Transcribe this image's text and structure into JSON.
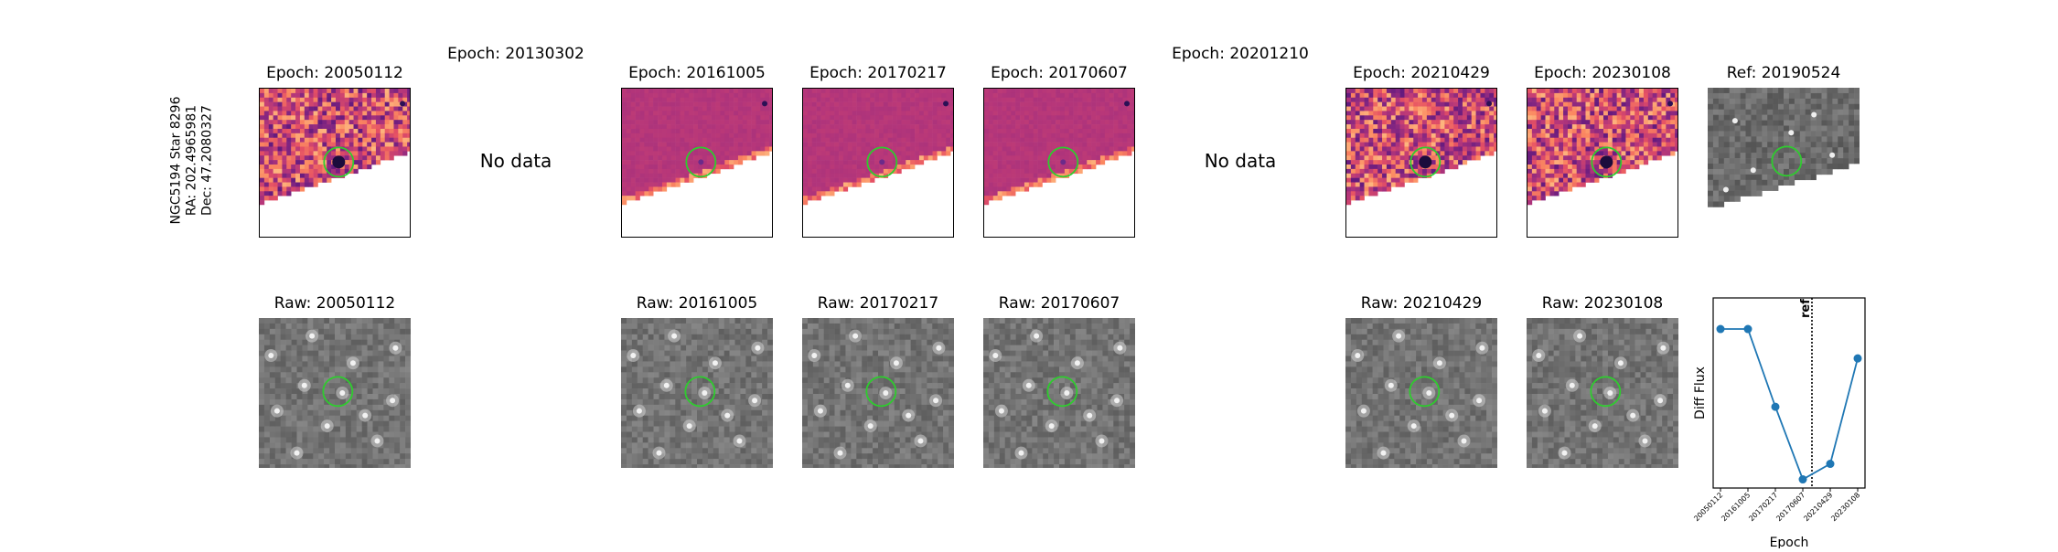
{
  "star_info": {
    "name": "NGC5194 Star 8296",
    "ra": "RA: 202.4965981",
    "dec": "Dec: 47.2080327"
  },
  "epochs": [
    {
      "diff_title": "Epoch: 20050112",
      "raw_title": "Raw: 20050112",
      "has_data": true,
      "style": "bright"
    },
    {
      "diff_title": "Epoch: 20130302",
      "raw_title": "",
      "has_data": false,
      "nodata_label": "No data"
    },
    {
      "diff_title": "Epoch: 20161005",
      "raw_title": "Raw: 20161005",
      "has_data": true,
      "style": "smooth"
    },
    {
      "diff_title": "Epoch: 20170217",
      "raw_title": "Raw: 20170217",
      "has_data": true,
      "style": "smooth"
    },
    {
      "diff_title": "Epoch: 20170607",
      "raw_title": "Raw: 20170607",
      "has_data": true,
      "style": "smooth"
    },
    {
      "diff_title": "Epoch: 20201210",
      "raw_title": "",
      "has_data": false,
      "nodata_label": "No data"
    },
    {
      "diff_title": "Epoch: 20210429",
      "raw_title": "Raw: 20210429",
      "has_data": true,
      "style": "bright"
    },
    {
      "diff_title": "Epoch: 20230108",
      "raw_title": "Raw: 20230108",
      "has_data": true,
      "style": "bright"
    }
  ],
  "reference": {
    "title": "Ref: 20190524"
  },
  "colors": {
    "circle": "#2ecc2e",
    "line": "#1f77b4",
    "magma_dark": "#3b0f70",
    "magma_mid": "#b5367a",
    "magma_bright": "#fb8861"
  },
  "chart_data": {
    "type": "line",
    "x": [
      "20050112",
      "20161005",
      "20170217",
      "20170607",
      "20210429",
      "20230108"
    ],
    "values": [
      0.92,
      0.92,
      0.47,
      0.05,
      0.14,
      0.75
    ],
    "ylim": [
      0,
      1.1
    ],
    "xlabel": "Epoch",
    "ylabel": "Diff Flux",
    "ref_label": "ref",
    "ref_position_between": [
      "20170607",
      "20210429"
    ],
    "grid": false
  }
}
